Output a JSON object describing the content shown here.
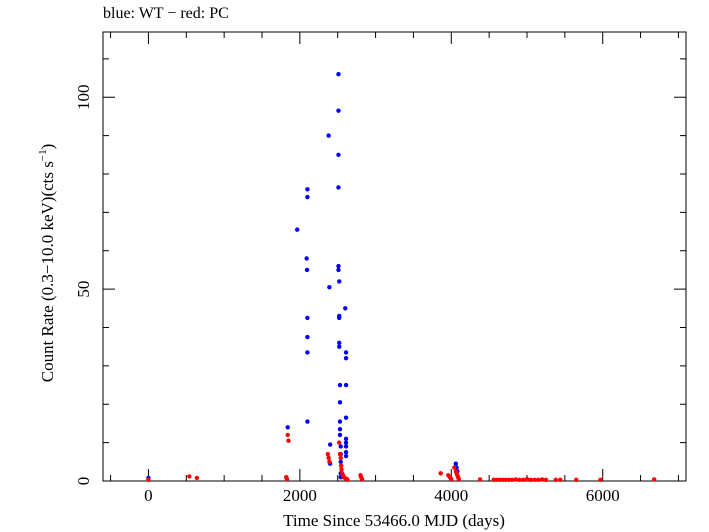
{
  "chart_data": {
    "type": "scatter",
    "title": "blue: WT − red: PC",
    "xlabel": "Time Since 53466.0 MJD (days)",
    "ylabel_main": "Count Rate (0.3−10.0 keV)(cts s",
    "ylabel_sup": "−1",
    "ylabel_close": ")",
    "xlim": [
      -600,
      7100
    ],
    "ylim": [
      0,
      117
    ],
    "x_ticks": [
      0,
      2000,
      4000,
      6000
    ],
    "x_tick_labels": [
      "0",
      "2000",
      "4000",
      "6000"
    ],
    "y_ticks": [
      0,
      50,
      100
    ],
    "y_tick_labels": [
      "0",
      "50",
      "100"
    ],
    "grid": false,
    "series": [
      {
        "color": "#0000ff",
        "points": [
          [
            0,
            0.8
          ],
          [
            1840,
            14
          ],
          [
            1965,
            65.5
          ],
          [
            2090,
            58
          ],
          [
            2095,
            55
          ],
          [
            2100,
            76
          ],
          [
            2100,
            74
          ],
          [
            2100,
            42.5
          ],
          [
            2100,
            37.5
          ],
          [
            2100,
            33.5
          ],
          [
            2100,
            15.5
          ],
          [
            2380,
            90
          ],
          [
            2390,
            50.5
          ],
          [
            2400,
            9.5
          ],
          [
            2400,
            4.5
          ],
          [
            2510,
            106
          ],
          [
            2510,
            96.5
          ],
          [
            2510,
            85
          ],
          [
            2510,
            76.5
          ],
          [
            2510,
            56
          ],
          [
            2510,
            55
          ],
          [
            2520,
            52
          ],
          [
            2520,
            43
          ],
          [
            2520,
            42.5
          ],
          [
            2520,
            36
          ],
          [
            2520,
            35
          ],
          [
            2530,
            25
          ],
          [
            2530,
            20.5
          ],
          [
            2530,
            15.5
          ],
          [
            2530,
            13.5
          ],
          [
            2530,
            12
          ],
          [
            2540,
            9
          ],
          [
            2540,
            7
          ],
          [
            2540,
            5
          ],
          [
            2540,
            2
          ],
          [
            2540,
            1
          ],
          [
            2600,
            45
          ],
          [
            2610,
            33.5
          ],
          [
            2610,
            32
          ],
          [
            2610,
            25
          ],
          [
            2610,
            16.5
          ],
          [
            2610,
            11
          ],
          [
            2610,
            10
          ],
          [
            2610,
            9
          ],
          [
            2610,
            7.5
          ],
          [
            2610,
            6.5
          ],
          [
            4060,
            4.5
          ],
          [
            4070,
            3.5
          ],
          [
            4080,
            2.5
          ]
        ]
      },
      {
        "color": "#ff0000",
        "points": [
          [
            0,
            0.3
          ],
          [
            540,
            1.2
          ],
          [
            640,
            0.8
          ],
          [
            1820,
            1
          ],
          [
            1830,
            0.5
          ],
          [
            1840,
            12
          ],
          [
            1850,
            10.5
          ],
          [
            2370,
            7
          ],
          [
            2380,
            6
          ],
          [
            2390,
            5
          ],
          [
            2520,
            10
          ],
          [
            2530,
            7
          ],
          [
            2540,
            6
          ],
          [
            2545,
            4
          ],
          [
            2550,
            3
          ],
          [
            2560,
            2
          ],
          [
            2570,
            1.5
          ],
          [
            2580,
            1
          ],
          [
            2600,
            0.7
          ],
          [
            2620,
            0.5
          ],
          [
            2630,
            0.3
          ],
          [
            2800,
            1.5
          ],
          [
            2810,
            1
          ],
          [
            2820,
            0.5
          ],
          [
            3860,
            2
          ],
          [
            3960,
            1.5
          ],
          [
            3980,
            1
          ],
          [
            4000,
            0.5
          ],
          [
            4040,
            3.5
          ],
          [
            4060,
            2.5
          ],
          [
            4070,
            2
          ],
          [
            4080,
            1.5
          ],
          [
            4090,
            1
          ],
          [
            4100,
            0.5
          ],
          [
            4380,
            0.4
          ],
          [
            4560,
            0.3
          ],
          [
            4600,
            0.3
          ],
          [
            4640,
            0.3
          ],
          [
            4680,
            0.3
          ],
          [
            4720,
            0.3
          ],
          [
            4760,
            0.3
          ],
          [
            4800,
            0.3
          ],
          [
            4850,
            0.4
          ],
          [
            4900,
            0.3
          ],
          [
            4950,
            0.3
          ],
          [
            5000,
            0.5
          ],
          [
            5050,
            0.3
          ],
          [
            5100,
            0.3
          ],
          [
            5150,
            0.3
          ],
          [
            5200,
            0.4
          ],
          [
            5250,
            0.3
          ],
          [
            5380,
            0.3
          ],
          [
            5440,
            0.3
          ],
          [
            5650,
            0.3
          ],
          [
            5970,
            0.3
          ],
          [
            6680,
            0.4
          ]
        ]
      }
    ]
  }
}
